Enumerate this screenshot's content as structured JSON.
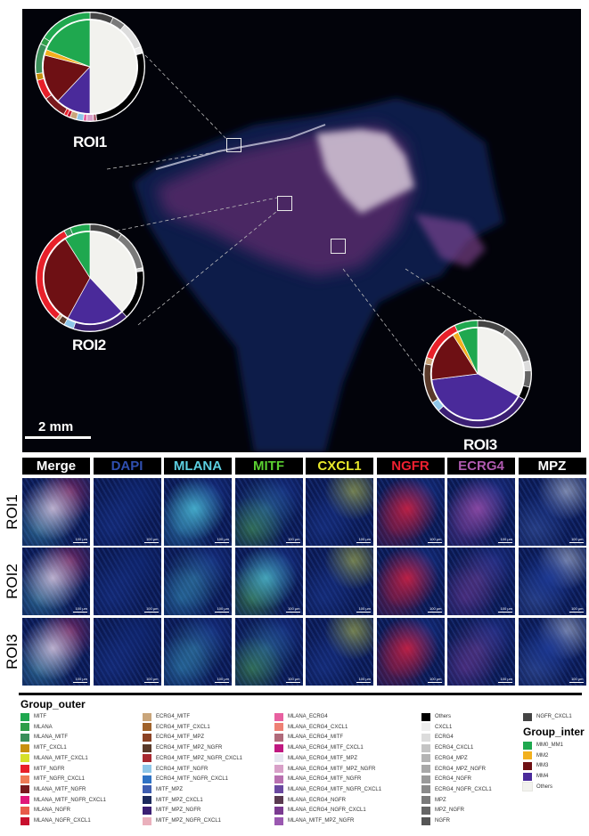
{
  "overview": {
    "scale_bar_label": "2 mm",
    "rois": [
      {
        "label": "ROI1",
        "inner": [
          {
            "group": "Others",
            "value": 0.5
          },
          {
            "group": "MM4",
            "value": 0.12
          },
          {
            "group": "MM3",
            "value": 0.17
          },
          {
            "group": "MM2",
            "value": 0.02
          },
          {
            "group": "MM0_MM1",
            "value": 0.19
          }
        ],
        "outer": [
          {
            "group": "NGFR_CXCL1",
            "value": 0.07
          },
          {
            "group": "MPZ",
            "value": 0.04
          },
          {
            "group": "ECRG4",
            "value": 0.08
          },
          {
            "group": "CXCL1",
            "value": 0.02
          },
          {
            "group": "Others",
            "value": 0.27
          },
          {
            "group": "MLANA_ECRG4_MITF",
            "value": 0.01
          },
          {
            "group": "MLANA_ECRG4_MITF_MPZ_NGFR",
            "value": 0.02
          },
          {
            "group": "MLANA_ECRG4",
            "value": 0.01
          },
          {
            "group": "ECRG4_MITF_NGFR",
            "value": 0.02
          },
          {
            "group": "ECRG4_MITF",
            "value": 0.02
          },
          {
            "group": "MLANA_NGFR_CXCL1",
            "value": 0.01
          },
          {
            "group": "MITF_NGFR",
            "value": 0.01
          },
          {
            "group": "MLANA_MITF_NGFR",
            "value": 0.07
          },
          {
            "group": "MITF_NGFR",
            "value": 0.06
          },
          {
            "group": "MITF_CXCL1",
            "value": 0.02
          },
          {
            "group": "MLANA_MITF",
            "value": 0.09
          },
          {
            "group": "MLANA",
            "value": 0.02
          },
          {
            "group": "MITF",
            "value": 0.16
          }
        ]
      },
      {
        "label": "ROI2",
        "inner": [
          {
            "group": "Others",
            "value": 0.38
          },
          {
            "group": "MM4",
            "value": 0.2
          },
          {
            "group": "MM3",
            "value": 0.33
          },
          {
            "group": "MM0_MM1",
            "value": 0.09
          }
        ],
        "outer": [
          {
            "group": "NGFR_CXCL1",
            "value": 0.1
          },
          {
            "group": "MPZ",
            "value": 0.12
          },
          {
            "group": "ECRG4",
            "value": 0.01
          },
          {
            "group": "Others",
            "value": 0.15
          },
          {
            "group": "MITF_MPZ_NGFR",
            "value": 0.17
          },
          {
            "group": "ECRG4_MITF_NGFR",
            "value": 0.03
          },
          {
            "group": "ECRG4_MITF_MPZ_NGFR",
            "value": 0.02
          },
          {
            "group": "ECRG4_MITF",
            "value": 0.01
          },
          {
            "group": "MITF_NGFR",
            "value": 0.31
          },
          {
            "group": "MLANA_MITF",
            "value": 0.02
          },
          {
            "group": "MITF",
            "value": 0.06
          }
        ]
      },
      {
        "label": "ROI3",
        "inner": [
          {
            "group": "Others",
            "value": 0.33
          },
          {
            "group": "MM4",
            "value": 0.4
          },
          {
            "group": "MM3",
            "value": 0.18
          },
          {
            "group": "MM2",
            "value": 0.02
          },
          {
            "group": "MM0_MM1",
            "value": 0.07
          }
        ],
        "outer": [
          {
            "group": "NGFR_CXCL1",
            "value": 0.09
          },
          {
            "group": "MPZ",
            "value": 0.12
          },
          {
            "group": "ECRG4",
            "value": 0.03
          },
          {
            "group": "MPZ_NGFR",
            "value": 0.05
          },
          {
            "group": "Others",
            "value": 0.04
          },
          {
            "group": "MITF_MPZ_NGFR",
            "value": 0.3
          },
          {
            "group": "ECRG4_MITF_NGFR",
            "value": 0.03
          },
          {
            "group": "ECRG4_MITF_MPZ_NGFR",
            "value": 0.12
          },
          {
            "group": "ECRG4_MITF",
            "value": 0.02
          },
          {
            "group": "MITF_NGFR",
            "value": 0.13
          },
          {
            "group": "MITF",
            "value": 0.07
          }
        ]
      }
    ]
  },
  "panel": {
    "markers": [
      {
        "label": "Merge",
        "color": "#ffffff"
      },
      {
        "label": "DAPI",
        "color": "#2f4fb0"
      },
      {
        "label": "MLANA",
        "color": "#5ccfe0"
      },
      {
        "label": "MITF",
        "color": "#5ad030"
      },
      {
        "label": "CXCL1",
        "color": "#e8e82a"
      },
      {
        "label": "NGFR",
        "color": "#ee2030"
      },
      {
        "label": "ECRG4",
        "color": "#b05ab0"
      },
      {
        "label": "MPZ",
        "color": "#ffffff"
      }
    ],
    "rows": [
      "ROI1",
      "ROI2",
      "ROI3"
    ],
    "tile_scale_label": "100 µm"
  },
  "legend": {
    "outer_title": "Group_outer",
    "inter_title": "Group_inter",
    "outer_columns": [
      [
        {
          "label": "MITF",
          "color": "#1fa84f"
        },
        {
          "label": "MLANA",
          "color": "#2e9e48"
        },
        {
          "label": "MLANA_MITF",
          "color": "#3a8f5a"
        },
        {
          "label": "MITF_CXCL1",
          "color": "#c8900f"
        },
        {
          "label": "MLANA_MITF_CXCL1",
          "color": "#d6e02a"
        },
        {
          "label": "MITF_NGFR",
          "color": "#e8202a"
        },
        {
          "label": "MITF_NGFR_CXCL1",
          "color": "#ef7a55"
        },
        {
          "label": "MLANA_MITF_NGFR",
          "color": "#7a1a1e"
        },
        {
          "label": "MLANA_MITF_NGFR_CXCL1",
          "color": "#e0187a"
        },
        {
          "label": "MLANA_NGFR",
          "color": "#e85a4a"
        },
        {
          "label": "MLANA_NGFR_CXCL1",
          "color": "#c8102e"
        }
      ],
      [
        {
          "label": "ECRG4_MITF",
          "color": "#c9a57a"
        },
        {
          "label": "ECRG4_MITF_CXCL1",
          "color": "#a0622a"
        },
        {
          "label": "ECRG4_MITF_MPZ",
          "color": "#8b4225"
        },
        {
          "label": "ECRG4_MITF_MPZ_NGFR",
          "color": "#5a3a2a"
        },
        {
          "label": "ECRG4_MITF_MPZ_NGFR_CXCL1",
          "color": "#a82830"
        },
        {
          "label": "ECRG4_MITF_NGFR",
          "color": "#8ec6e8"
        },
        {
          "label": "ECRG4_MITF_NGFR_CXCL1",
          "color": "#2f72c4"
        },
        {
          "label": "MITF_MPZ",
          "color": "#3e5db0"
        },
        {
          "label": "MITF_MPZ_CXCL1",
          "color": "#1c2a5c"
        },
        {
          "label": "MITF_MPZ_NGFR",
          "color": "#3b1f73"
        },
        {
          "label": "MITF_MPZ_NGFR_CXCL1",
          "color": "#eab0bc"
        }
      ],
      [
        {
          "label": "MLANA_ECRG4",
          "color": "#e860a0"
        },
        {
          "label": "MLANA_ECRG4_CXCL1",
          "color": "#ee8074"
        },
        {
          "label": "MLANA_ECRG4_MITF",
          "color": "#b06a7a"
        },
        {
          "label": "MLANA_ECRG4_MITF_CXCL1",
          "color": "#c01880"
        },
        {
          "label": "MLANA_ECRG4_MITF_MPZ",
          "color": "#e6e6f0"
        },
        {
          "label": "MLANA_ECRG4_MITF_MPZ_NGFR",
          "color": "#d8a0c8"
        },
        {
          "label": "MLANA_ECRG4_MITF_NGFR",
          "color": "#b870b0"
        },
        {
          "label": "MLANA_ECRG4_MITF_NGFR_CXCL1",
          "color": "#6a48a0"
        },
        {
          "label": "MLANA_ECRG4_NGFR",
          "color": "#5a3a50"
        },
        {
          "label": "MLANA_ECRG4_NGFR_CXCL1",
          "color": "#7a3a90"
        },
        {
          "label": "MLANA_MITF_MPZ_NGFR",
          "color": "#9a58b0"
        }
      ],
      [
        {
          "label": "Others",
          "color": "#000000"
        },
        {
          "label": "CXCL1",
          "color": "#eeeeee"
        },
        {
          "label": "ECRG4",
          "color": "#dcdcdc"
        },
        {
          "label": "ECRG4_CXCL1",
          "color": "#c4c4c4"
        },
        {
          "label": "ECRG4_MPZ",
          "color": "#b4b4b4"
        },
        {
          "label": "ECRG4_MPZ_NGFR",
          "color": "#a8a8a8"
        },
        {
          "label": "ECRG4_NGFR",
          "color": "#9a9a9a"
        },
        {
          "label": "ECRG4_NGFR_CXCL1",
          "color": "#8a8a8a"
        },
        {
          "label": "MPZ",
          "color": "#7a7a7a"
        },
        {
          "label": "MPZ_NGFR",
          "color": "#666666"
        },
        {
          "label": "NGFR",
          "color": "#555555"
        }
      ],
      [
        {
          "label": "NGFR_CXCL1",
          "color": "#444444"
        }
      ]
    ],
    "inter_items": [
      {
        "label": "MM0_MM1",
        "color": "#1fa84f"
      },
      {
        "label": "MM2",
        "color": "#f2b01e"
      },
      {
        "label": "MM3",
        "color": "#6e1014"
      },
      {
        "label": "MM4",
        "color": "#4a2a9a"
      },
      {
        "label": "Others",
        "color": "#f2f2ee"
      }
    ]
  }
}
